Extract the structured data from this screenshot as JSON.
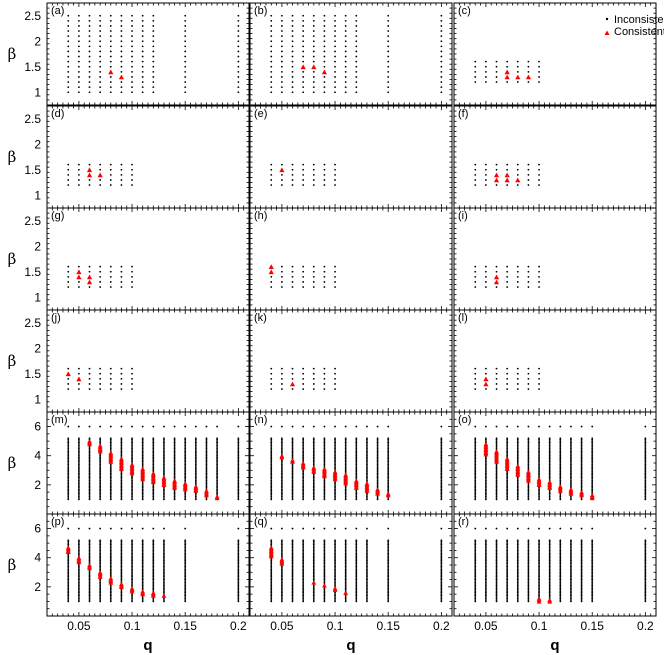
{
  "chart_data": {
    "type": "scatter",
    "layout": "6 rows x 3 columns of panels, shared q axis per column",
    "xlabel": "q",
    "ylabel": "β",
    "xlim": [
      0.02,
      0.21
    ],
    "xticks": [
      0.05,
      0.1,
      0.15,
      0.2
    ],
    "xticklabels": [
      "0.05",
      "0.1",
      "0.15",
      "0.2"
    ],
    "legend": {
      "position": "top-right",
      "entries": [
        {
          "label": "Inconsistent",
          "marker": "dot",
          "color": "#000000"
        },
        {
          "label": "Consistent",
          "marker": "triangle",
          "color": "#ff0000"
        }
      ]
    },
    "rows": [
      {
        "ylim": [
          0.75,
          2.75
        ],
        "yticks": [
          1,
          1.5,
          2,
          2.5
        ],
        "yticklabels": [
          "1",
          "1.5",
          "2",
          "2.5"
        ]
      },
      {
        "ylim": [
          0.75,
          2.75
        ],
        "yticks": [
          1,
          1.5,
          2,
          2.5
        ],
        "yticklabels": [
          "1",
          "1.5",
          "2",
          "2.5"
        ]
      },
      {
        "ylim": [
          0.75,
          2.75
        ],
        "yticks": [
          1,
          1.5,
          2,
          2.5
        ],
        "yticklabels": [
          "1",
          "1.5",
          "2",
          "2.5"
        ]
      },
      {
        "ylim": [
          0.75,
          2.75
        ],
        "yticks": [
          1,
          1.5,
          2,
          2.5
        ],
        "yticklabels": [
          "1",
          "1.5",
          "2",
          "2.5"
        ]
      },
      {
        "ylim": [
          0,
          7
        ],
        "yticks": [
          2,
          4,
          6
        ],
        "yticklabels": [
          "2",
          "4",
          "6"
        ]
      },
      {
        "ylim": [
          0,
          7
        ],
        "yticks": [
          2,
          4,
          6
        ],
        "yticklabels": [
          "2",
          "4",
          "6"
        ]
      }
    ],
    "panels": [
      {
        "label": "(a)",
        "row": 0,
        "col": 0,
        "inconsistent": {
          "q": [
            0.04,
            0.05,
            0.06,
            0.07,
            0.08,
            0.09,
            0.1,
            0.11,
            0.12,
            0.15,
            0.2
          ],
          "beta_min": 1.0,
          "beta_max": 2.5,
          "step": 0.1
        },
        "consistent": [
          [
            0.08,
            1.4
          ],
          [
            0.09,
            1.3
          ]
        ]
      },
      {
        "label": "(b)",
        "row": 0,
        "col": 1,
        "inconsistent": {
          "q": [
            0.04,
            0.05,
            0.06,
            0.07,
            0.08,
            0.09,
            0.1,
            0.11,
            0.12,
            0.15,
            0.2
          ],
          "beta_min": 1.0,
          "beta_max": 2.5,
          "step": 0.1
        },
        "consistent": [
          [
            0.07,
            1.5
          ],
          [
            0.08,
            1.5
          ],
          [
            0.09,
            1.4
          ]
        ]
      },
      {
        "label": "(c)",
        "row": 0,
        "col": 2,
        "inconsistent": {
          "q": [
            0.04,
            0.05,
            0.06,
            0.07,
            0.08,
            0.09,
            0.1
          ],
          "beta_min": 1.2,
          "beta_max": 1.6,
          "step": 0.1
        },
        "consistent": [
          [
            0.07,
            1.4
          ],
          [
            0.07,
            1.3
          ],
          [
            0.08,
            1.3
          ],
          [
            0.09,
            1.3
          ]
        ]
      },
      {
        "label": "(d)",
        "row": 1,
        "col": 0,
        "inconsistent": {
          "q": [
            0.04,
            0.05,
            0.06,
            0.07,
            0.08,
            0.09,
            0.1
          ],
          "beta_min": 1.2,
          "beta_max": 1.6,
          "step": 0.1
        },
        "consistent": [
          [
            0.06,
            1.5
          ],
          [
            0.06,
            1.4
          ],
          [
            0.07,
            1.4
          ]
        ]
      },
      {
        "label": "(e)",
        "row": 1,
        "col": 1,
        "inconsistent": {
          "q": [
            0.04,
            0.05,
            0.06,
            0.07,
            0.08,
            0.09,
            0.1
          ],
          "beta_min": 1.2,
          "beta_max": 1.6,
          "step": 0.1
        },
        "consistent": [
          [
            0.05,
            1.5
          ]
        ]
      },
      {
        "label": "(f)",
        "row": 1,
        "col": 2,
        "inconsistent": {
          "q": [
            0.04,
            0.05,
            0.06,
            0.07,
            0.08,
            0.09,
            0.1
          ],
          "beta_min": 1.2,
          "beta_max": 1.6,
          "step": 0.1
        },
        "consistent": [
          [
            0.06,
            1.4
          ],
          [
            0.06,
            1.3
          ],
          [
            0.07,
            1.4
          ],
          [
            0.07,
            1.3
          ],
          [
            0.08,
            1.3
          ]
        ]
      },
      {
        "label": "(g)",
        "row": 2,
        "col": 0,
        "inconsistent": {
          "q": [
            0.04,
            0.05,
            0.06,
            0.07,
            0.08,
            0.09,
            0.1
          ],
          "beta_min": 1.2,
          "beta_max": 1.6,
          "step": 0.1
        },
        "consistent": [
          [
            0.05,
            1.5
          ],
          [
            0.05,
            1.4
          ],
          [
            0.06,
            1.4
          ],
          [
            0.06,
            1.3
          ]
        ]
      },
      {
        "label": "(h)",
        "row": 2,
        "col": 1,
        "inconsistent": {
          "q": [
            0.04,
            0.05,
            0.06,
            0.07,
            0.08,
            0.09,
            0.1
          ],
          "beta_min": 1.2,
          "beta_max": 1.6,
          "step": 0.1
        },
        "consistent": [
          [
            0.04,
            1.6
          ],
          [
            0.04,
            1.5
          ]
        ]
      },
      {
        "label": "(i)",
        "row": 2,
        "col": 2,
        "inconsistent": {
          "q": [
            0.04,
            0.05,
            0.06,
            0.07,
            0.08,
            0.09,
            0.1
          ],
          "beta_min": 1.2,
          "beta_max": 1.6,
          "step": 0.1
        },
        "consistent": [
          [
            0.06,
            1.4
          ],
          [
            0.06,
            1.3
          ]
        ]
      },
      {
        "label": "(j)",
        "row": 3,
        "col": 0,
        "inconsistent": {
          "q": [
            0.04,
            0.05,
            0.06,
            0.07,
            0.08,
            0.09,
            0.1
          ],
          "beta_min": 1.2,
          "beta_max": 1.6,
          "step": 0.1
        },
        "consistent": [
          [
            0.04,
            1.5
          ],
          [
            0.05,
            1.4
          ]
        ]
      },
      {
        "label": "(k)",
        "row": 3,
        "col": 1,
        "inconsistent": {
          "q": [
            0.04,
            0.05,
            0.06,
            0.07,
            0.08,
            0.09,
            0.1
          ],
          "beta_min": 1.2,
          "beta_max": 1.6,
          "step": 0.1
        },
        "consistent": [
          [
            0.06,
            1.3
          ]
        ]
      },
      {
        "label": "(l)",
        "row": 3,
        "col": 2,
        "inconsistent": {
          "q": [
            0.04,
            0.05,
            0.06,
            0.07,
            0.08,
            0.09,
            0.1
          ],
          "beta_min": 1.2,
          "beta_max": 1.6,
          "step": 0.1
        },
        "consistent": [
          [
            0.05,
            1.4
          ],
          [
            0.05,
            1.3
          ]
        ]
      },
      {
        "label": "(m)",
        "row": 4,
        "col": 0,
        "inconsistent": {
          "q": [
            0.04,
            0.05,
            0.06,
            0.07,
            0.08,
            0.09,
            0.1,
            0.11,
            0.12,
            0.13,
            0.14,
            0.15,
            0.16,
            0.17,
            0.18,
            0.2
          ],
          "beta_min": 1.0,
          "beta_max": 5.2,
          "step": 0.1
        },
        "top_row_beta": 6.0,
        "consistent_ranges": [
          [
            0.06,
            4.8,
            5.0
          ],
          [
            0.07,
            4.3,
            4.7
          ],
          [
            0.08,
            3.6,
            4.2
          ],
          [
            0.09,
            3.1,
            3.8
          ],
          [
            0.1,
            2.8,
            3.4
          ],
          [
            0.11,
            2.4,
            3.1
          ],
          [
            0.12,
            2.2,
            2.8
          ],
          [
            0.13,
            2.0,
            2.5
          ],
          [
            0.14,
            1.8,
            2.3
          ],
          [
            0.15,
            1.7,
            2.1
          ],
          [
            0.16,
            1.6,
            1.9
          ],
          [
            0.17,
            1.3,
            1.6
          ],
          [
            0.18,
            1.1,
            1.2
          ]
        ]
      },
      {
        "label": "(n)",
        "row": 4,
        "col": 1,
        "inconsistent": {
          "q": [
            0.04,
            0.05,
            0.06,
            0.07,
            0.08,
            0.09,
            0.1,
            0.11,
            0.12,
            0.13,
            0.14,
            0.15,
            0.2
          ],
          "beta_min": 1.0,
          "beta_max": 5.2,
          "step": 0.1
        },
        "top_row_beta": 6.0,
        "consistent_ranges": [
          [
            0.05,
            3.9,
            4.0
          ],
          [
            0.06,
            3.6,
            3.7
          ],
          [
            0.07,
            3.2,
            3.5
          ],
          [
            0.08,
            2.9,
            3.2
          ],
          [
            0.09,
            2.6,
            3.1
          ],
          [
            0.1,
            2.4,
            2.9
          ],
          [
            0.11,
            2.1,
            2.7
          ],
          [
            0.12,
            1.8,
            2.3
          ],
          [
            0.13,
            1.6,
            2.1
          ],
          [
            0.14,
            1.4,
            1.7
          ],
          [
            0.15,
            1.3,
            1.4
          ]
        ]
      },
      {
        "label": "(o)",
        "row": 4,
        "col": 2,
        "inconsistent": {
          "q": [
            0.04,
            0.05,
            0.06,
            0.07,
            0.08,
            0.09,
            0.1,
            0.11,
            0.12,
            0.13,
            0.14,
            0.15,
            0.2
          ],
          "beta_min": 1.0,
          "beta_max": 5.2,
          "step": 0.1
        },
        "top_row_beta": 6.0,
        "consistent_ranges": [
          [
            0.05,
            4.1,
            4.8
          ],
          [
            0.06,
            3.6,
            4.3
          ],
          [
            0.07,
            3.1,
            3.8
          ],
          [
            0.08,
            2.7,
            3.3
          ],
          [
            0.09,
            2.3,
            2.9
          ],
          [
            0.1,
            2.0,
            2.4
          ],
          [
            0.11,
            1.8,
            2.2
          ],
          [
            0.12,
            1.6,
            1.9
          ],
          [
            0.13,
            1.4,
            1.7
          ],
          [
            0.14,
            1.3,
            1.5
          ],
          [
            0.15,
            1.1,
            1.3
          ]
        ]
      },
      {
        "label": "(p)",
        "row": 5,
        "col": 0,
        "inconsistent": {
          "q": [
            0.04,
            0.05,
            0.06,
            0.07,
            0.08,
            0.09,
            0.1,
            0.11,
            0.12,
            0.13,
            0.15,
            0.2
          ],
          "beta_min": 1.0,
          "beta_max": 5.2,
          "step": 0.1
        },
        "top_row_beta": 6.0,
        "consistent_ranges": [
          [
            0.04,
            4.4,
            4.7
          ],
          [
            0.05,
            3.7,
            4.0
          ],
          [
            0.06,
            3.3,
            3.5
          ],
          [
            0.07,
            2.7,
            3.0
          ],
          [
            0.08,
            2.3,
            2.6
          ],
          [
            0.09,
            2.0,
            2.2
          ],
          [
            0.1,
            1.7,
            1.9
          ],
          [
            0.11,
            1.5,
            1.7
          ],
          [
            0.12,
            1.4,
            1.6
          ],
          [
            0.13,
            1.4,
            1.4
          ]
        ]
      },
      {
        "label": "(q)",
        "row": 5,
        "col": 1,
        "inconsistent": {
          "q": [
            0.04,
            0.05,
            0.06,
            0.07,
            0.08,
            0.09,
            0.1,
            0.11,
            0.12,
            0.13,
            0.15,
            0.2
          ],
          "beta_min": 1.0,
          "beta_max": 5.2,
          "step": 0.1
        },
        "top_row_beta": 6.0,
        "consistent_ranges": [
          [
            0.04,
            4.1,
            4.7
          ],
          [
            0.05,
            3.6,
            3.9
          ],
          [
            0.08,
            2.3,
            2.3
          ],
          [
            0.09,
            2.1,
            2.1
          ],
          [
            0.1,
            1.8,
            1.9
          ],
          [
            0.11,
            1.6,
            1.6
          ]
        ]
      },
      {
        "label": "(r)",
        "row": 5,
        "col": 2,
        "inconsistent": {
          "q": [
            0.04,
            0.05,
            0.06,
            0.07,
            0.08,
            0.09,
            0.1,
            0.11,
            0.12,
            0.13,
            0.14,
            0.15,
            0.2
          ],
          "beta_min": 1.0,
          "beta_max": 5.2,
          "step": 0.1
        },
        "top_row_beta": 6.0,
        "consistent_ranges": [
          [
            0.1,
            1.0,
            1.2
          ],
          [
            0.11,
            1.0,
            1.1
          ]
        ]
      }
    ]
  }
}
